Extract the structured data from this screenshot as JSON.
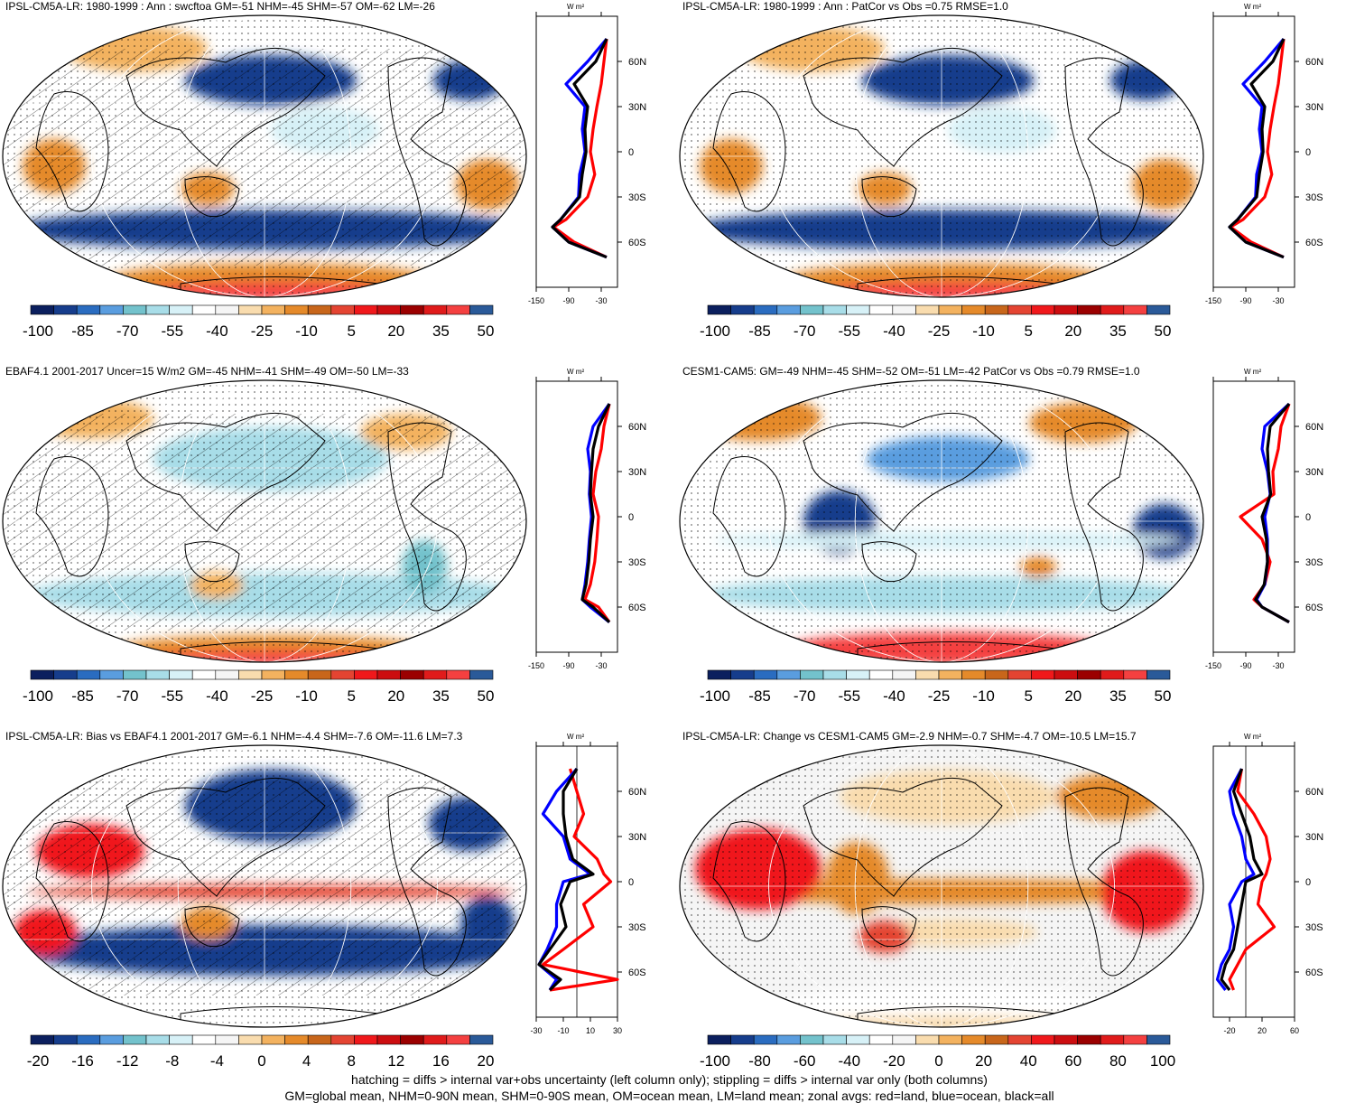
{
  "panels": [
    {
      "title": "IPSL-CM5A-LR: 1980-1999 : Ann : swcftoa GM=-51 NHM=-45 SHM=-57 OM=-62 LM=-26",
      "scheme": "abs",
      "hatch": true,
      "colorbar_labels": [
        "-100",
        "-85",
        "-70",
        "-55",
        "-40",
        "-25",
        "-10",
        "5",
        "20",
        "35",
        "50"
      ],
      "zonal": {
        "unit": "W m²",
        "lat_labels": [
          "60N",
          "30N",
          "0",
          "30S",
          "60S"
        ],
        "x_ticks": [
          "-150",
          "-90",
          "-30"
        ],
        "xlim": [
          -150,
          0
        ],
        "zero_line": false,
        "lat": [
          75,
          60,
          45,
          30,
          15,
          0,
          -15,
          -30,
          -45,
          -50,
          -60,
          -70
        ],
        "land": [
          -20,
          -25,
          -30,
          -38,
          -45,
          -50,
          -42,
          -55,
          -95,
          -118,
          -80,
          -20
        ],
        "ocean": [
          -20,
          -55,
          -95,
          -60,
          -65,
          -60,
          -70,
          -72,
          -105,
          -120,
          -90,
          -20
        ],
        "all": [
          -20,
          -40,
          -80,
          -55,
          -60,
          -58,
          -65,
          -70,
          -105,
          -120,
          -90,
          -20
        ]
      }
    },
    {
      "title": "IPSL-CM5A-LR: 1980-1999 : Ann : PatCor vs Obs =0.75 RMSE=1.0",
      "scheme": "abs",
      "hatch": false,
      "colorbar_labels": [
        "-100",
        "-85",
        "-70",
        "-55",
        "-40",
        "-25",
        "-10",
        "5",
        "20",
        "35",
        "50"
      ],
      "zonal": {
        "unit": "W m²",
        "lat_labels": [
          "60N",
          "30N",
          "0",
          "30S",
          "60S"
        ],
        "x_ticks": [
          "-150",
          "-90",
          "-30"
        ],
        "xlim": [
          -150,
          0
        ],
        "zero_line": false,
        "lat": [
          75,
          60,
          45,
          30,
          15,
          0,
          -15,
          -30,
          -45,
          -50,
          -60,
          -70
        ],
        "land": [
          -20,
          -25,
          -30,
          -38,
          -45,
          -50,
          -42,
          -55,
          -95,
          -118,
          -80,
          -20
        ],
        "ocean": [
          -20,
          -55,
          -95,
          -60,
          -65,
          -60,
          -70,
          -72,
          -105,
          -120,
          -90,
          -20
        ],
        "all": [
          -20,
          -40,
          -80,
          -55,
          -60,
          -58,
          -65,
          -70,
          -105,
          -120,
          -90,
          -20
        ]
      }
    },
    {
      "title": "EBAF4.1 2001-2017 Uncer=15 W/m2 GM=-45 NHM=-41 SHM=-49 OM=-50 LM=-33",
      "scheme": "abs",
      "hatch": true,
      "colorbar_labels": [
        "-100",
        "-85",
        "-70",
        "-55",
        "-40",
        "-25",
        "-10",
        "5",
        "20",
        "35",
        "50"
      ],
      "zonal": {
        "unit": "W m²",
        "lat_labels": [
          "60N",
          "30N",
          "0",
          "30S",
          "60S"
        ],
        "x_ticks": [
          "-150",
          "-90",
          "-30"
        ],
        "xlim": [
          -150,
          0
        ],
        "zero_line": false,
        "lat": [
          75,
          60,
          45,
          30,
          15,
          0,
          -15,
          -30,
          -45,
          -55,
          -60,
          -70
        ],
        "land": [
          -15,
          -25,
          -30,
          -40,
          -45,
          -35,
          -38,
          -42,
          -50,
          -60,
          -35,
          -15
        ],
        "ocean": [
          -15,
          -45,
          -55,
          -50,
          -52,
          -48,
          -52,
          -55,
          -60,
          -65,
          -50,
          -15
        ],
        "all": [
          -15,
          -35,
          -45,
          -48,
          -50,
          -45,
          -50,
          -53,
          -58,
          -65,
          -45,
          -15
        ]
      }
    },
    {
      "title": "CESM1-CAM5: GM=-49 NHM=-45 SHM=-52 OM=-51 LM=-42 PatCor vs Obs =0.79 RMSE=1.0",
      "scheme": "abs",
      "hatch": false,
      "colorbar_labels": [
        "-100",
        "-85",
        "-70",
        "-55",
        "-40",
        "-25",
        "-10",
        "5",
        "20",
        "35",
        "50"
      ],
      "zonal": {
        "unit": "W m²",
        "lat_labels": [
          "60N",
          "30N",
          "0",
          "30S",
          "60S"
        ],
        "x_ticks": [
          "-150",
          "-90",
          "-30"
        ],
        "xlim": [
          -150,
          0
        ],
        "zero_line": false,
        "lat": [
          75,
          60,
          45,
          30,
          15,
          0,
          -15,
          -30,
          -45,
          -55,
          -60,
          -70
        ],
        "land": [
          -10,
          -25,
          -30,
          -40,
          -38,
          -100,
          -60,
          -45,
          -55,
          -75,
          -60,
          -10
        ],
        "ocean": [
          -10,
          -55,
          -60,
          -50,
          -45,
          -55,
          -50,
          -50,
          -55,
          -70,
          -60,
          -10
        ],
        "all": [
          -10,
          -45,
          -50,
          -48,
          -44,
          -60,
          -52,
          -50,
          -56,
          -72,
          -60,
          -10
        ]
      }
    },
    {
      "title": "IPSL-CM5A-LR: Bias vs EBAF4.1 2001-2017 GM=-6.1 NHM=-4.4 SHM=-7.6 OM=-11.6 LM=7.3",
      "scheme": "diff20",
      "hatch": true,
      "colorbar_labels": [
        "-20",
        "-16",
        "-12",
        "-8",
        "-4",
        "0",
        "4",
        "8",
        "12",
        "16",
        "20"
      ],
      "zonal": {
        "unit": "W m²",
        "lat_labels": [
          "60N",
          "30N",
          "0",
          "30S",
          "60S"
        ],
        "x_ticks": [
          "-30",
          "-10",
          "10",
          "30"
        ],
        "xlim": [
          -30,
          30
        ],
        "zero_line": true,
        "lat": [
          75,
          60,
          45,
          30,
          15,
          5,
          0,
          -15,
          -30,
          -45,
          -55,
          -65,
          -72
        ],
        "land": [
          -5,
          0,
          5,
          -2,
          15,
          20,
          25,
          5,
          12,
          -10,
          -25,
          30,
          -20
        ],
        "ocean": [
          0,
          -15,
          -25,
          -10,
          -5,
          10,
          -10,
          -15,
          -15,
          -22,
          -28,
          -15,
          -20
        ],
        "all": [
          0,
          -10,
          -10,
          -8,
          -3,
          12,
          -5,
          -12,
          -8,
          -20,
          -28,
          -12,
          -20
        ]
      }
    },
    {
      "title": "IPSL-CM5A-LR: Change vs CESM1-CAM5 GM=-2.9 NHM=-0.7 SHM=-4.7 OM=-10.5 LM=15.7",
      "scheme": "diff100",
      "hatch": false,
      "colorbar_labels": [
        "-100",
        "-80",
        "-60",
        "-40",
        "-20",
        "0",
        "20",
        "40",
        "60",
        "80",
        "100"
      ],
      "zonal": {
        "unit": "W m²",
        "lat_labels": [
          "60N",
          "30N",
          "0",
          "30S",
          "60S"
        ],
        "x_ticks": [
          "-20",
          "20",
          "60"
        ],
        "xlim": [
          -40,
          60
        ],
        "zero_line": true,
        "lat": [
          75,
          60,
          45,
          30,
          15,
          5,
          0,
          -15,
          -30,
          -45,
          -55,
          -65,
          -72
        ],
        "land": [
          -5,
          -10,
          10,
          25,
          30,
          25,
          20,
          15,
          35,
          0,
          -10,
          -20,
          -15
        ],
        "ocean": [
          -5,
          -20,
          -15,
          -5,
          0,
          10,
          -5,
          -20,
          -15,
          -20,
          -30,
          -35,
          -25
        ],
        "all": [
          -5,
          -15,
          -5,
          5,
          10,
          20,
          0,
          -5,
          -10,
          -15,
          -25,
          -30,
          -20
        ]
      }
    }
  ],
  "footer": {
    "line1": "hatching = diffs > internal var+obs uncertainty (left column only); stippling = diffs > internal var only (both columns)",
    "line2": "GM=global mean, NHM=0-90N mean, SHM=0-90S mean, OM=ocean mean, LM=land mean; zonal avgs: red=land, blue=ocean, black=all"
  },
  "colors": {
    "abs": [
      "#0b1f5e",
      "#163d8c",
      "#2a6cc0",
      "#5a9ddf",
      "#73c2cc",
      "#a8dde8",
      "#d7f1f7",
      "#ffffff",
      "#f5f5f5",
      "#f9dcae",
      "#f3b25f",
      "#e58a2a",
      "#c8661b",
      "#e44432",
      "#f0181b",
      "#cc0d10",
      "#9b0000",
      "#e01b1b",
      "#f44040",
      "#2a5a99"
    ],
    "diff": [
      "#0b1f5e",
      "#163d8c",
      "#2a6cc0",
      "#5a9ddf",
      "#73c2cc",
      "#a8dde8",
      "#d7f1f7",
      "#ffffff",
      "#f5f5f5",
      "#f9dcae",
      "#f3b25f",
      "#e58a2a",
      "#c8661b",
      "#e44432",
      "#f0181b",
      "#cc0d10",
      "#9b0000",
      "#e01b1b",
      "#f44040",
      "#2a5a99"
    ],
    "land": "#ff0000",
    "ocean": "#0000ff",
    "all": "#000000"
  }
}
